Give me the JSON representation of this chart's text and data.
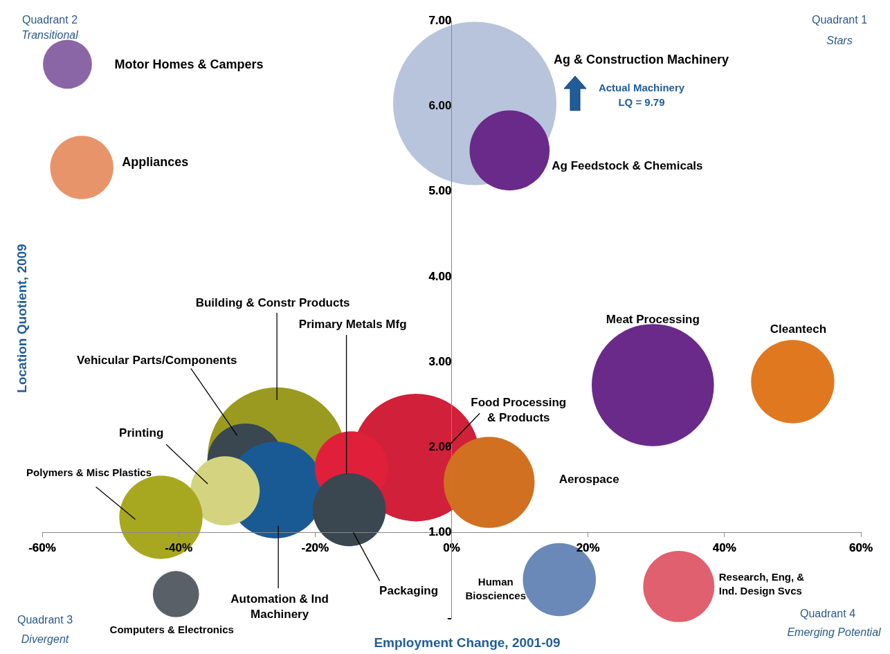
{
  "chart_data": {
    "type": "bubble",
    "xlabel": "Employment Change, 2001-09",
    "ylabel": "Location Quotient, 2009",
    "xlim": [
      -60,
      60
    ],
    "xticks": [
      {
        "value": -60,
        "label": "-60%"
      },
      {
        "value": -40,
        "label": "-40%"
      },
      {
        "value": -20,
        "label": "-20%"
      },
      {
        "value": 0,
        "label": "0%"
      },
      {
        "value": 20,
        "label": "20%"
      },
      {
        "value": 40,
        "label": "40%"
      },
      {
        "value": 60,
        "label": "60%"
      }
    ],
    "ylim": [
      0,
      7
    ],
    "yticks": [
      {
        "value": 0,
        "label": "-"
      },
      {
        "value": 1,
        "label": "1.00"
      },
      {
        "value": 2,
        "label": "2.00"
      },
      {
        "value": 3,
        "label": "3.00"
      },
      {
        "value": 4,
        "label": "4.00"
      },
      {
        "value": 5,
        "label": "5.00"
      },
      {
        "value": 6,
        "label": "6.00"
      },
      {
        "value": 7,
        "label": "7.00"
      }
    ],
    "annotations": [
      "Quadrant 1",
      "Stars",
      "Quadrant 2",
      "Transitional",
      "Quadrant 3",
      "Divergent",
      "Quadrant 4",
      "Emerging Potential",
      "Actual Machinery LQ = 9.79"
    ],
    "series": [
      {
        "name": "Ag & Construction Machinery",
        "color": "#b8c4dc",
        "x": [
          3.4
        ],
        "values": [
          6.03
        ],
        "sizes": [
          1
        ]
      },
      {
        "name": "Ag Feedstock & Chemicals",
        "color": "#6a2a8a",
        "x": [
          8.5
        ],
        "values": [
          5.48
        ],
        "sizes": [
          0.24
        ]
      },
      {
        "name": "Motor Homes & Campers",
        "color": "#8a66a6",
        "x": [
          -56.3
        ],
        "values": [
          6.49
        ],
        "sizes": [
          0.09
        ]
      },
      {
        "name": "Appliances",
        "color": "#e8946a",
        "x": [
          -54.2
        ],
        "values": [
          5.28
        ],
        "sizes": [
          0.15
        ]
      },
      {
        "name": "Meat Processing",
        "color": "#6a2a8a",
        "x": [
          29.5
        ],
        "values": [
          2.73
        ],
        "sizes": [
          0.56
        ]
      },
      {
        "name": "Cleantech",
        "color": "#e07820",
        "x": [
          50
        ],
        "values": [
          2.77
        ],
        "sizes": [
          0.26
        ]
      },
      {
        "name": "Building & Constr Products",
        "color": "#9a9a20",
        "x": [
          -25.6
        ],
        "values": [
          1.89
        ],
        "sizes": [
          0.72
        ]
      },
      {
        "name": "Vehicular Parts/Components",
        "color": "#3a4650",
        "x": [
          -30.2
        ],
        "values": [
          1.83
        ],
        "sizes": [
          0.22
        ]
      },
      {
        "name": "Automation & Ind Machinery",
        "color": "#1a5a94",
        "x": [
          -25.8
        ],
        "values": [
          1.5
        ],
        "sizes": [
          0.35
        ]
      },
      {
        "name": "Printing",
        "color": "#d4d480",
        "x": [
          -33.2
        ],
        "values": [
          1.49
        ],
        "sizes": [
          0.18
        ]
      },
      {
        "name": "Polymers & Misc Plastics",
        "color": "#a8a820",
        "x": [
          -42.6
        ],
        "values": [
          1.18
        ],
        "sizes": [
          0.26
        ]
      },
      {
        "name": "Food Processing & Products",
        "color": "#d0203a",
        "x": [
          -5.2
        ],
        "values": [
          1.88
        ],
        "sizes": [
          0.61
        ]
      },
      {
        "name": "Primary Metals Mfg",
        "color": "#e0203a",
        "x": [
          -14.7
        ],
        "values": [
          1.76
        ],
        "sizes": [
          0.2
        ]
      },
      {
        "name": "Packaging",
        "color": "#3a4650",
        "x": [
          -15
        ],
        "values": [
          1.27
        ],
        "sizes": [
          0.2
        ]
      },
      {
        "name": "Aerospace",
        "color": "#d07020",
        "x": [
          5.5
        ],
        "values": [
          1.59
        ],
        "sizes": [
          0.31
        ]
      },
      {
        "name": "Computers & Electronics",
        "color": "#5a6068",
        "x": [
          -40.4
        ],
        "values": [
          0.28
        ],
        "sizes": [
          0.08
        ]
      },
      {
        "name": "Human Biosciences",
        "color": "#6a88b8",
        "x": [
          15.8
        ],
        "values": [
          0.45
        ],
        "sizes": [
          0.2
        ]
      },
      {
        "name": "Research, Eng, & Ind. Design Svcs",
        "color": "#e06070",
        "x": [
          33.3
        ],
        "values": [
          0.37
        ],
        "sizes": [
          0.19
        ]
      }
    ]
  }
}
